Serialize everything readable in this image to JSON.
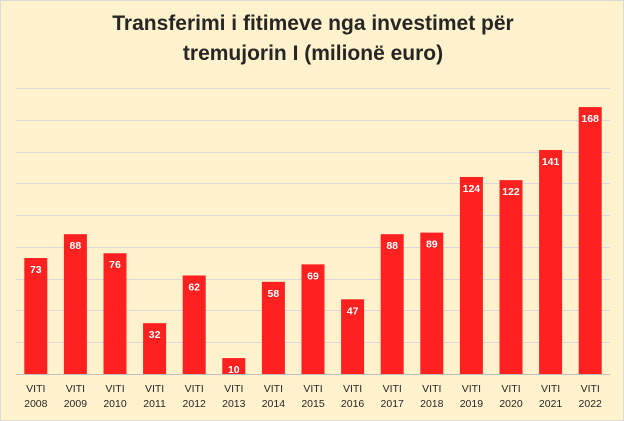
{
  "chart_data": {
    "type": "bar",
    "title_lines": [
      "Transferimi i fitimeve nga investimet për",
      "tremujorin I (milionë euro)"
    ],
    "xlabel": "",
    "ylabel": "",
    "category_prefix": "VITI",
    "categories": [
      "2008",
      "2009",
      "2010",
      "2011",
      "2012",
      "2013",
      "2014",
      "2015",
      "2016",
      "2017",
      "2018",
      "2019",
      "2020",
      "2021",
      "2022"
    ],
    "values": [
      73,
      88,
      76,
      32,
      62,
      10,
      58,
      69,
      47,
      88,
      89,
      124,
      122,
      141,
      168
    ],
    "ylim": [
      0,
      180
    ],
    "grid_step": 20,
    "grid": true,
    "legend": "none",
    "colors": {
      "bar": "#ff2020",
      "background": "#fff2cc",
      "grid": "#d9d9d9",
      "axis": "#bfbfbf",
      "label": "#ffffff"
    }
  }
}
